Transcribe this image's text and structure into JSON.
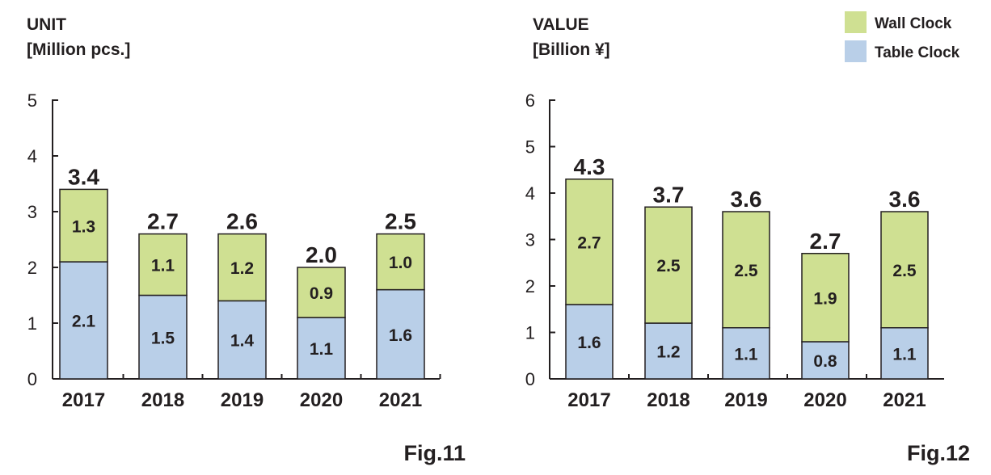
{
  "colors": {
    "wall": "#cfe092",
    "table": "#b9cfe8",
    "axis": "#231f20"
  },
  "legend": [
    {
      "key": "wall",
      "label": "Wall Clock"
    },
    {
      "key": "table",
      "label": "Table Clock"
    }
  ],
  "chart_data": [
    {
      "type": "bar",
      "stacked": true,
      "title_line1": "UNIT",
      "title_line2": "[Million pcs.]",
      "figure_label": "Fig.11",
      "categories": [
        "2017",
        "2018",
        "2019",
        "2020",
        "2021"
      ],
      "ylim": [
        0,
        5
      ],
      "yticks": [
        "0",
        "1",
        "2",
        "3",
        "4",
        "5"
      ],
      "series": [
        {
          "name": "Table Clock",
          "key": "table",
          "values": [
            2.1,
            1.5,
            1.4,
            1.1,
            1.6
          ],
          "labels": [
            "2.1",
            "1.5",
            "1.4",
            "1.1",
            "1.6"
          ]
        },
        {
          "name": "Wall Clock",
          "key": "wall",
          "values": [
            1.3,
            1.1,
            1.2,
            0.9,
            1.0
          ],
          "labels": [
            "1.3",
            "1.1",
            "1.2",
            "0.9",
            "1.0"
          ]
        }
      ],
      "totals": [
        "3.4",
        "2.7",
        "2.6",
        "2.0",
        "2.5"
      ]
    },
    {
      "type": "bar",
      "stacked": true,
      "title_line1": "VALUE",
      "title_line2": "[Billion ¥]",
      "figure_label": "Fig.12",
      "categories": [
        "2017",
        "2018",
        "2019",
        "2020",
        "2021"
      ],
      "ylim": [
        0,
        6
      ],
      "yticks": [
        "0",
        "1",
        "2",
        "3",
        "4",
        "5",
        "6"
      ],
      "series": [
        {
          "name": "Table Clock",
          "key": "table",
          "values": [
            1.6,
            1.2,
            1.1,
            0.8,
            1.1
          ],
          "labels": [
            "1.6",
            "1.2",
            "1.1",
            "0.8",
            "1.1"
          ]
        },
        {
          "name": "Wall Clock",
          "key": "wall",
          "values": [
            2.7,
            2.5,
            2.5,
            1.9,
            2.5
          ],
          "labels": [
            "2.7",
            "2.5",
            "2.5",
            "1.9",
            "2.5"
          ]
        }
      ],
      "totals": [
        "4.3",
        "3.7",
        "3.6",
        "2.7",
        "3.6"
      ]
    }
  ]
}
